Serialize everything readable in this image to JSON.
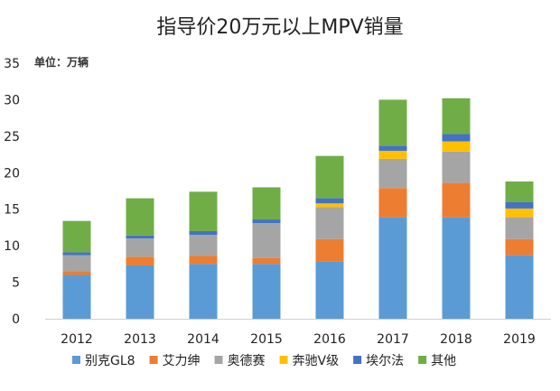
{
  "chart_data": {
    "type": "stacked-bar",
    "title": "指导价20万元以上MPV销量",
    "unit_label": "单位：万辆",
    "ylim": [
      0,
      35
    ],
    "yticks": [
      0,
      5,
      10,
      15,
      20,
      25,
      30,
      35
    ],
    "categories": [
      "2012",
      "2013",
      "2014",
      "2015",
      "2016",
      "2017",
      "2018",
      "2019"
    ],
    "series": [
      {
        "name": "别克GL8",
        "color": "#5B9BD5",
        "values": [
          6.0,
          7.3,
          7.5,
          7.5,
          7.8,
          13.9,
          13.9,
          8.7
        ]
      },
      {
        "name": "艾力绅",
        "color": "#ED7D31",
        "values": [
          0.5,
          1.2,
          1.1,
          0.8,
          3.1,
          4.0,
          4.7,
          2.2
        ]
      },
      {
        "name": "奥德赛",
        "color": "#A5A5A5",
        "values": [
          2.2,
          2.5,
          2.9,
          4.8,
          4.4,
          4.0,
          4.3,
          3.0
        ]
      },
      {
        "name": "奔驰V级",
        "color": "#FFC000",
        "values": [
          0.0,
          0.0,
          0.0,
          0.0,
          0.5,
          1.1,
          1.4,
          1.2
        ]
      },
      {
        "name": "埃尔法",
        "color": "#4472C4",
        "values": [
          0.4,
          0.4,
          0.5,
          0.5,
          0.7,
          0.7,
          1.0,
          0.9
        ]
      },
      {
        "name": "其他",
        "color": "#70AD47",
        "values": [
          4.3,
          5.1,
          5.4,
          4.4,
          5.8,
          6.3,
          4.9,
          2.8
        ]
      }
    ]
  }
}
